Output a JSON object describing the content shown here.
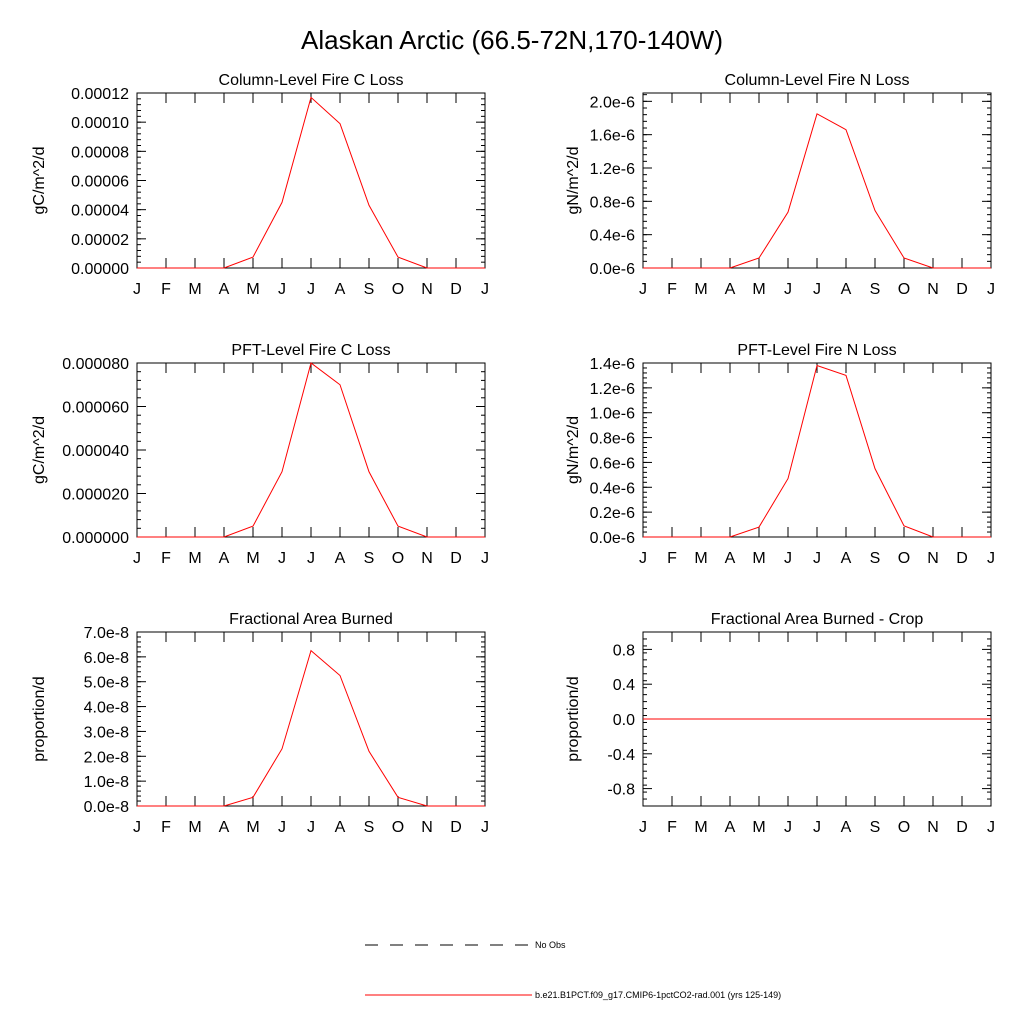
{
  "figure": {
    "title": "Alaskan Arctic (66.5-72N,170-140W)"
  },
  "colors": {
    "series": "#ff0000",
    "axes": "#000000",
    "obs": "#000000"
  },
  "chart_data": [
    {
      "type": "line",
      "title": "Column-Level Fire C Loss",
      "xlabel": "",
      "ylabel": "gC/m^2/d",
      "x": [
        "J",
        "F",
        "M",
        "A",
        "M",
        "J",
        "J",
        "A",
        "S",
        "O",
        "N",
        "D",
        "J"
      ],
      "ylim": [
        0,
        0.00012
      ],
      "yticks": [
        0,
        2e-05,
        4e-05,
        6e-05,
        8e-05,
        0.0001,
        0.00012
      ],
      "ytick_labels": [
        "0.00000",
        "0.00002",
        "0.00004",
        "0.00006",
        "0.00008",
        "0.00010",
        "0.00012"
      ],
      "series": [
        {
          "name": "b.e21.B1PCT.f09_g17.CMIP6-1pctCO2-rad.001 (yrs 125-149)",
          "values": [
            0,
            0,
            0,
            0,
            7.5e-06,
            4.5e-05,
            0.000117,
            9.9e-05,
            4.3e-05,
            7.5e-06,
            0,
            0,
            0
          ]
        }
      ]
    },
    {
      "type": "line",
      "title": "Column-Level Fire N Loss",
      "xlabel": "",
      "ylabel": "gN/m^2/d",
      "x": [
        "J",
        "F",
        "M",
        "A",
        "M",
        "J",
        "J",
        "A",
        "S",
        "O",
        "N",
        "D",
        "J"
      ],
      "ylim": [
        0,
        2.1e-06
      ],
      "yticks": [
        0,
        4e-07,
        8e-07,
        1.2e-06,
        1.6e-06,
        2e-06
      ],
      "ytick_labels": [
        "0.0e-6",
        "0.4e-6",
        "0.8e-6",
        "1.2e-6",
        "1.6e-6",
        "2.0e-6"
      ],
      "series": [
        {
          "name": "b.e21.B1PCT.f09_g17.CMIP6-1pctCO2-rad.001 (yrs 125-149)",
          "values": [
            0,
            0,
            0,
            0,
            1.2e-07,
            6.7e-07,
            1.85e-06,
            1.66e-06,
            6.9e-07,
            1.2e-07,
            0,
            0,
            0
          ]
        }
      ]
    },
    {
      "type": "line",
      "title": "PFT-Level Fire C Loss",
      "xlabel": "",
      "ylabel": "gC/m^2/d",
      "x": [
        "J",
        "F",
        "M",
        "A",
        "M",
        "J",
        "J",
        "A",
        "S",
        "O",
        "N",
        "D",
        "J"
      ],
      "ylim": [
        0,
        8e-05
      ],
      "yticks": [
        0,
        2e-05,
        4e-05,
        6e-05,
        8e-05
      ],
      "ytick_labels": [
        "0.000000",
        "0.000020",
        "0.000040",
        "0.000060",
        "0.000080"
      ],
      "series": [
        {
          "name": "b.e21.B1PCT.f09_g17.CMIP6-1pctCO2-rad.001 (yrs 125-149)",
          "values": [
            0,
            0,
            0,
            0,
            5e-06,
            3e-05,
            8e-05,
            7e-05,
            3e-05,
            5e-06,
            0,
            0,
            0
          ]
        }
      ]
    },
    {
      "type": "line",
      "title": "PFT-Level Fire N Loss",
      "xlabel": "",
      "ylabel": "gN/m^2/d",
      "x": [
        "J",
        "F",
        "M",
        "A",
        "M",
        "J",
        "J",
        "A",
        "S",
        "O",
        "N",
        "D",
        "J"
      ],
      "ylim": [
        0,
        1.4e-06
      ],
      "yticks": [
        0,
        2e-07,
        4e-07,
        6e-07,
        8e-07,
        1e-06,
        1.2e-06,
        1.4e-06
      ],
      "ytick_labels": [
        "0.0e-6",
        "0.2e-6",
        "0.4e-6",
        "0.6e-6",
        "0.8e-6",
        "1.0e-6",
        "1.2e-6",
        "1.4e-6"
      ],
      "series": [
        {
          "name": "b.e21.B1PCT.f09_g17.CMIP6-1pctCO2-rad.001 (yrs 125-149)",
          "values": [
            0,
            0,
            0,
            0,
            8e-08,
            4.7e-07,
            1.38e-06,
            1.3e-06,
            5.5e-07,
            9e-08,
            0,
            0,
            0
          ]
        }
      ]
    },
    {
      "type": "line",
      "title": "Fractional Area Burned",
      "xlabel": "",
      "ylabel": "proportion/d",
      "x": [
        "J",
        "F",
        "M",
        "A",
        "M",
        "J",
        "J",
        "A",
        "S",
        "O",
        "N",
        "D",
        "J"
      ],
      "ylim": [
        0,
        7e-08
      ],
      "yticks": [
        0,
        1e-08,
        2e-08,
        3e-08,
        4e-08,
        5e-08,
        6e-08,
        7e-08
      ],
      "ytick_labels": [
        "0.0e-8",
        "1.0e-8",
        "2.0e-8",
        "3.0e-8",
        "4.0e-8",
        "5.0e-8",
        "6.0e-8",
        "7.0e-8"
      ],
      "series": [
        {
          "name": "b.e21.B1PCT.f09_g17.CMIP6-1pctCO2-rad.001 (yrs 125-149)",
          "values": [
            0,
            0,
            0,
            0,
            3.5e-09,
            2.3e-08,
            6.25e-08,
            5.25e-08,
            2.2e-08,
            3.5e-09,
            0,
            0,
            0
          ]
        }
      ]
    },
    {
      "type": "line",
      "title": "Fractional Area Burned - Crop",
      "xlabel": "",
      "ylabel": "proportion/d",
      "x": [
        "J",
        "F",
        "M",
        "A",
        "M",
        "J",
        "J",
        "A",
        "S",
        "O",
        "N",
        "D",
        "J"
      ],
      "ylim": [
        -1,
        1
      ],
      "yticks": [
        -0.8,
        -0.4,
        0,
        0.4,
        0.8
      ],
      "ytick_labels": [
        "-0.8",
        "-0.4",
        "0.0",
        "0.4",
        "0.8"
      ],
      "series": [
        {
          "name": "b.e21.B1PCT.f09_g17.CMIP6-1pctCO2-rad.001 (yrs 125-149)",
          "values": [
            0,
            0,
            0,
            0,
            0,
            0,
            0,
            0,
            0,
            0,
            0,
            0,
            0
          ]
        }
      ]
    }
  ],
  "legend": {
    "placement": "bottom-center",
    "entries": [
      {
        "label": "No Obs",
        "style": "dashed",
        "color": "#000000"
      },
      {
        "label": "b.e21.B1PCT.f09_g17.CMIP6-1pctCO2-rad.001 (yrs 125-149)",
        "style": "solid",
        "color": "#ff0000"
      }
    ]
  }
}
